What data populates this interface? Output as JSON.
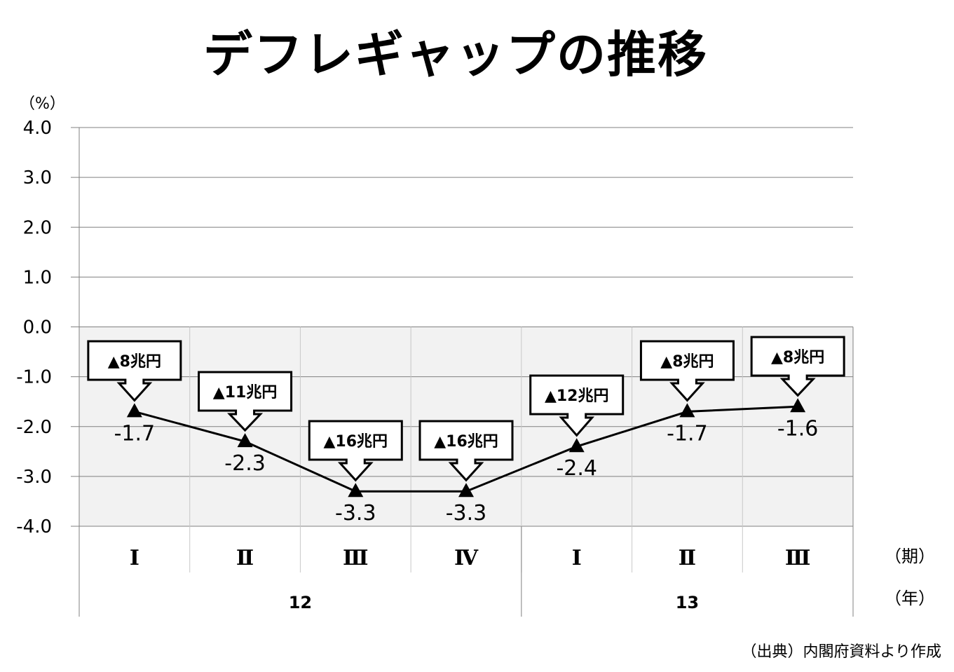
{
  "chart_data": {
    "type": "line",
    "title": "デフレギャップの推移",
    "ylabel": "（%）",
    "ylim": [
      -4.0,
      4.0
    ],
    "yticks": [
      "4.0",
      "3.0",
      "2.0",
      "1.0",
      "0.0",
      "-1.0",
      "-2.0",
      "-3.0",
      "-4.0"
    ],
    "categories": [
      "Ⅰ",
      "Ⅱ",
      "Ⅲ",
      "Ⅳ",
      "Ⅰ",
      "Ⅱ",
      "Ⅲ"
    ],
    "years": [
      {
        "label": "12",
        "span": 4
      },
      {
        "label": "13",
        "span": 3
      }
    ],
    "period_unit": "（期）",
    "year_unit": "（年）",
    "series": [
      {
        "values": [
          -1.7,
          -2.3,
          -3.3,
          -3.3,
          -2.4,
          -1.7,
          -1.6
        ],
        "labels": [
          "-1.7",
          "-2.3",
          "-3.3",
          "-3.3",
          "-2.4",
          "-1.7",
          "-1.6"
        ]
      }
    ],
    "callouts": [
      "▲8兆円",
      "▲11兆円",
      "▲16兆円",
      "▲16兆円",
      "▲12兆円",
      "▲8兆円",
      "▲8兆円"
    ],
    "grid": true,
    "negative_region_shaded": true,
    "colors": {
      "line": "#000000",
      "grid": "#808080",
      "shade": "#f2f2f2"
    }
  },
  "source": "（出典）内閣府資料より作成"
}
